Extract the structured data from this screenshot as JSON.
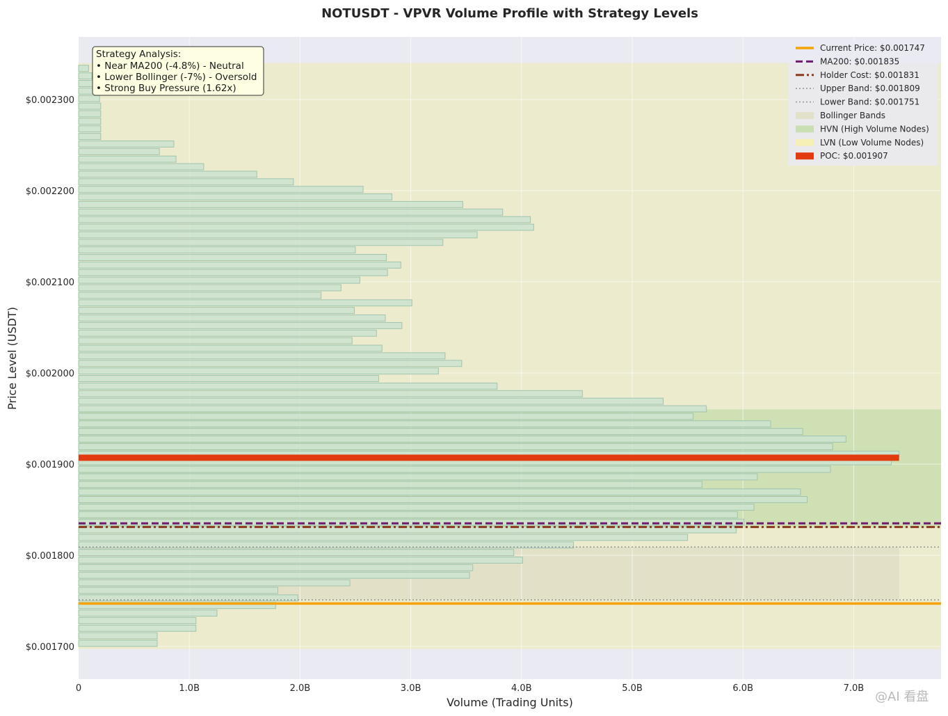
{
  "chart_data": {
    "type": "bar",
    "orientation": "horizontal",
    "title": "NOTUSDT - VPVR Volume Profile with Strategy Levels",
    "xlabel": "Volume (Trading Units)",
    "ylabel": "Price Level (USDT)",
    "xlim": [
      0,
      7.8
    ],
    "ylim": [
      0.001665,
      0.002365
    ],
    "x_ticks": [
      {
        "v": 0,
        "label": "0"
      },
      {
        "v": 1,
        "label": "1.0B"
      },
      {
        "v": 2,
        "label": "2.0B"
      },
      {
        "v": 3,
        "label": "3.0B"
      },
      {
        "v": 4,
        "label": "4.0B"
      },
      {
        "v": 5,
        "label": "5.0B"
      },
      {
        "v": 6,
        "label": "6.0B"
      },
      {
        "v": 7,
        "label": "7.0B"
      }
    ],
    "y_ticks": [
      {
        "v": 0.0017,
        "label": "$0.001700"
      },
      {
        "v": 0.0018,
        "label": "$0.001800"
      },
      {
        "v": 0.0019,
        "label": "$0.001900"
      },
      {
        "v": 0.002,
        "label": "$0.002000"
      },
      {
        "v": 0.0021,
        "label": "$0.002100"
      },
      {
        "v": 0.0022,
        "label": "$0.002200"
      },
      {
        "v": 0.0023,
        "label": "$0.002300"
      }
    ],
    "x_unit": "billions",
    "price_start": 0.0017,
    "price_step": 8.3e-06,
    "volumes": [
      0.71,
      0.71,
      1.06,
      1.06,
      1.25,
      1.78,
      1.98,
      1.8,
      2.45,
      3.53,
      3.56,
      4.01,
      3.93,
      4.47,
      5.5,
      5.94,
      6.01,
      5.95,
      6.1,
      6.58,
      6.52,
      5.63,
      6.13,
      6.79,
      7.34,
      7.41,
      6.81,
      6.93,
      6.54,
      6.25,
      5.55,
      5.67,
      5.28,
      4.55,
      3.78,
      2.71,
      3.25,
      3.46,
      3.31,
      2.74,
      2.47,
      2.69,
      2.92,
      2.77,
      2.49,
      3.01,
      2.19,
      2.37,
      2.54,
      2.79,
      2.91,
      2.78,
      2.5,
      3.29,
      3.6,
      4.11,
      4.08,
      3.83,
      3.47,
      2.83,
      2.57,
      1.94,
      1.61,
      1.13,
      0.88,
      0.73,
      0.86,
      0.2,
      0.2,
      0.2,
      0.2,
      0.2,
      0.19,
      0.19,
      0.13,
      0.12,
      0.09
    ],
    "poc": 0.001907,
    "hvn_range": [
      0.00183,
      0.00196
    ],
    "lvn_range": [
      0.001697,
      0.00234
    ],
    "bollinger_range": [
      0.001751,
      0.001809
    ],
    "levels": [
      {
        "name": "Current Price",
        "value": 0.001747,
        "color": "#f5a300",
        "style": "solid"
      },
      {
        "name": "MA200",
        "value": 0.001835,
        "color": "#6e1a70",
        "style": "dashed"
      },
      {
        "name": "Holder Cost",
        "value": 0.001831,
        "color": "#8b3a1e",
        "style": "dashdot"
      },
      {
        "name": "Upper Band",
        "value": 0.001809,
        "color": "#999999",
        "style": "dotted"
      },
      {
        "name": "Lower Band",
        "value": 0.001751,
        "color": "#999999",
        "style": "dotted"
      }
    ],
    "legend": [
      {
        "label": "Current Price: $0.001747",
        "kind": "line",
        "color": "#f5a300",
        "dash": "solid"
      },
      {
        "label": "MA200: $0.001835",
        "kind": "line",
        "color": "#6e1a70",
        "dash": "dashed"
      },
      {
        "label": "Holder Cost: $0.001831",
        "kind": "line",
        "color": "#8b3a1e",
        "dash": "dashdot"
      },
      {
        "label": "Upper Band: $0.001809",
        "kind": "line",
        "color": "#999999",
        "dash": "dotted"
      },
      {
        "label": "Lower Band: $0.001751",
        "kind": "line",
        "color": "#999999",
        "dash": "dotted"
      },
      {
        "label": "Bollinger Bands",
        "kind": "patch",
        "color": "#e1e0c8"
      },
      {
        "label": "HVN (High Volume Nodes)",
        "kind": "patch",
        "color": "#c9deb3"
      },
      {
        "label": "LVN (Low Volume Nodes)",
        "kind": "patch",
        "color": "#f6efb6"
      },
      {
        "label": "POC: $0.001907",
        "kind": "patch",
        "color": "#e03c10"
      }
    ],
    "legend_position": "top-right",
    "annotation": {
      "lines": [
        "Strategy Analysis:",
        "• Near MA200 (-4.8%) - Neutral",
        "• Lower Bollinger (-7%) - Oversold",
        "• Strong Buy Pressure (1.62x)"
      ]
    },
    "colors": {
      "plot_bg": "#eaeaf2",
      "lvn_fill": "#ecebcd",
      "hvn_fill": "#cfe0b4",
      "boll_fill": "#e2e1c8",
      "bar_fill": "#cde3cf",
      "bar_edge": "#9fc4b0",
      "poc": "#e03c10"
    },
    "grid": true
  },
  "watermark": "@AI 看盘"
}
